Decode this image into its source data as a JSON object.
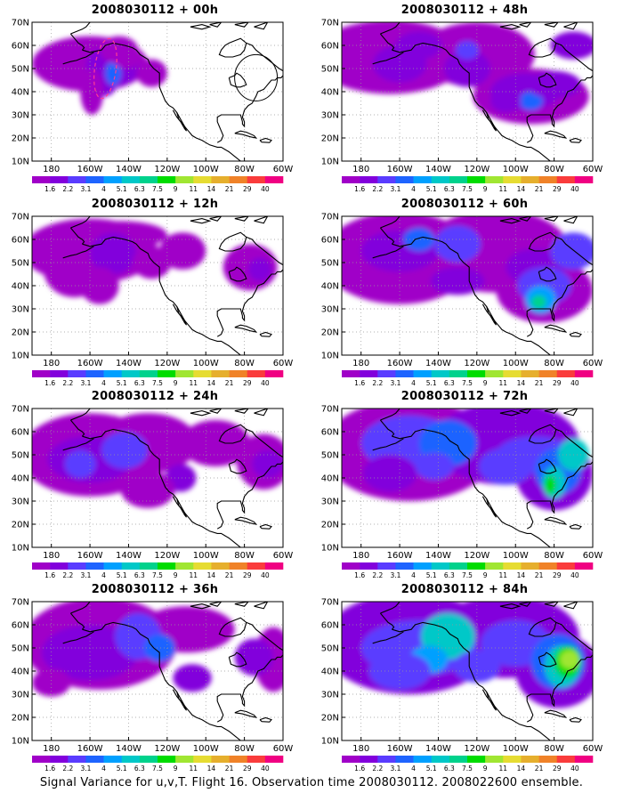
{
  "caption": "Signal Variance for u,v,T. Flight 16. Observation time 2008030112. 2008022600 ensemble.",
  "colors": {
    "scale": [
      "#a000c8",
      "#8200dc",
      "#5a3cff",
      "#1e64ff",
      "#00a0ff",
      "#00c8c8",
      "#00d28c",
      "#00dc00",
      "#a0e632",
      "#e6dc32",
      "#e6af2d",
      "#f08228",
      "#fa3c3c",
      "#f00082"
    ],
    "coast": "#000000",
    "grid": "#999999",
    "circle": "#000000",
    "dashed": "#ff3c96"
  },
  "chart_data": [
    {
      "type": "heatmap",
      "title": "2008030112 + 00h",
      "column": "left",
      "row": 0,
      "xlabels": [
        "180",
        "160W",
        "140W",
        "120W",
        "100W",
        "80W",
        "60W"
      ],
      "ylabels": [
        "10N",
        "20N",
        "30N",
        "40N",
        "50N",
        "60N",
        "70N"
      ],
      "colorbar": [
        "1.6",
        "2.2",
        "3.1",
        "4",
        "5.1",
        "6.3",
        "7.5",
        "9",
        "11",
        "14",
        "21",
        "29",
        "40"
      ]
    },
    {
      "type": "heatmap",
      "title": "2008030112 + 12h",
      "column": "left",
      "row": 1,
      "xlabels": [
        "180",
        "160W",
        "140W",
        "120W",
        "100W",
        "80W",
        "60W"
      ],
      "ylabels": [
        "10N",
        "20N",
        "30N",
        "40N",
        "50N",
        "60N",
        "70N"
      ],
      "colorbar": [
        "1.6",
        "2.2",
        "3.1",
        "4",
        "5.1",
        "6.3",
        "7.5",
        "9",
        "11",
        "14",
        "21",
        "29",
        "40"
      ]
    },
    {
      "type": "heatmap",
      "title": "2008030112 + 24h",
      "column": "left",
      "row": 2,
      "xlabels": [
        "180",
        "160W",
        "140W",
        "120W",
        "100W",
        "80W",
        "60W"
      ],
      "ylabels": [
        "10N",
        "20N",
        "30N",
        "40N",
        "50N",
        "60N",
        "70N"
      ],
      "colorbar": [
        "1.6",
        "2.2",
        "3.1",
        "4",
        "5.1",
        "6.3",
        "7.5",
        "9",
        "11",
        "14",
        "21",
        "29",
        "40"
      ]
    },
    {
      "type": "heatmap",
      "title": "2008030112 + 36h",
      "column": "left",
      "row": 3,
      "xlabels": [
        "180",
        "160W",
        "140W",
        "120W",
        "100W",
        "80W",
        "60W"
      ],
      "ylabels": [
        "10N",
        "20N",
        "30N",
        "40N",
        "50N",
        "60N",
        "70N"
      ],
      "colorbar": [
        "1.6",
        "2.2",
        "3.1",
        "4",
        "5.1",
        "6.3",
        "7.5",
        "9",
        "11",
        "14",
        "21",
        "29",
        "40"
      ]
    },
    {
      "type": "heatmap",
      "title": "2008030112 + 48h",
      "column": "right",
      "row": 0,
      "xlabels": [
        "180",
        "160W",
        "140W",
        "120W",
        "100W",
        "80W",
        "60W"
      ],
      "ylabels": [
        "10N",
        "20N",
        "30N",
        "40N",
        "50N",
        "60N",
        "70N"
      ],
      "colorbar": [
        "1.6",
        "2.2",
        "3.1",
        "4",
        "5.1",
        "6.3",
        "7.5",
        "9",
        "11",
        "14",
        "21",
        "29",
        "40"
      ]
    },
    {
      "type": "heatmap",
      "title": "2008030112 + 60h",
      "column": "right",
      "row": 1,
      "xlabels": [
        "180",
        "160W",
        "140W",
        "120W",
        "100W",
        "80W",
        "60W"
      ],
      "ylabels": [
        "10N",
        "20N",
        "30N",
        "40N",
        "50N",
        "60N",
        "70N"
      ],
      "colorbar": [
        "1.6",
        "2.2",
        "3.1",
        "4",
        "5.1",
        "6.3",
        "7.5",
        "9",
        "11",
        "14",
        "21",
        "29",
        "40"
      ]
    },
    {
      "type": "heatmap",
      "title": "2008030112 + 72h",
      "column": "right",
      "row": 2,
      "xlabels": [
        "180",
        "160W",
        "140W",
        "120W",
        "100W",
        "80W",
        "60W"
      ],
      "ylabels": [
        "10N",
        "20N",
        "30N",
        "40N",
        "50N",
        "60N",
        "70N"
      ],
      "colorbar": [
        "1.6",
        "2.2",
        "3.1",
        "4",
        "5.1",
        "6.3",
        "7.5",
        "9",
        "11",
        "14",
        "21",
        "29",
        "40"
      ]
    },
    {
      "type": "heatmap",
      "title": "2008030112 + 84h",
      "column": "right",
      "row": 3,
      "xlabels": [
        "180",
        "160W",
        "140W",
        "120W",
        "100W",
        "80W",
        "60W"
      ],
      "ylabels": [
        "10N",
        "20N",
        "30N",
        "40N",
        "50N",
        "60N",
        "70N"
      ],
      "colorbar": [
        "1.6",
        "2.2",
        "3.1",
        "4",
        "5.1",
        "6.3",
        "7.5",
        "9",
        "11",
        "14",
        "21",
        "29",
        "40"
      ]
    }
  ]
}
